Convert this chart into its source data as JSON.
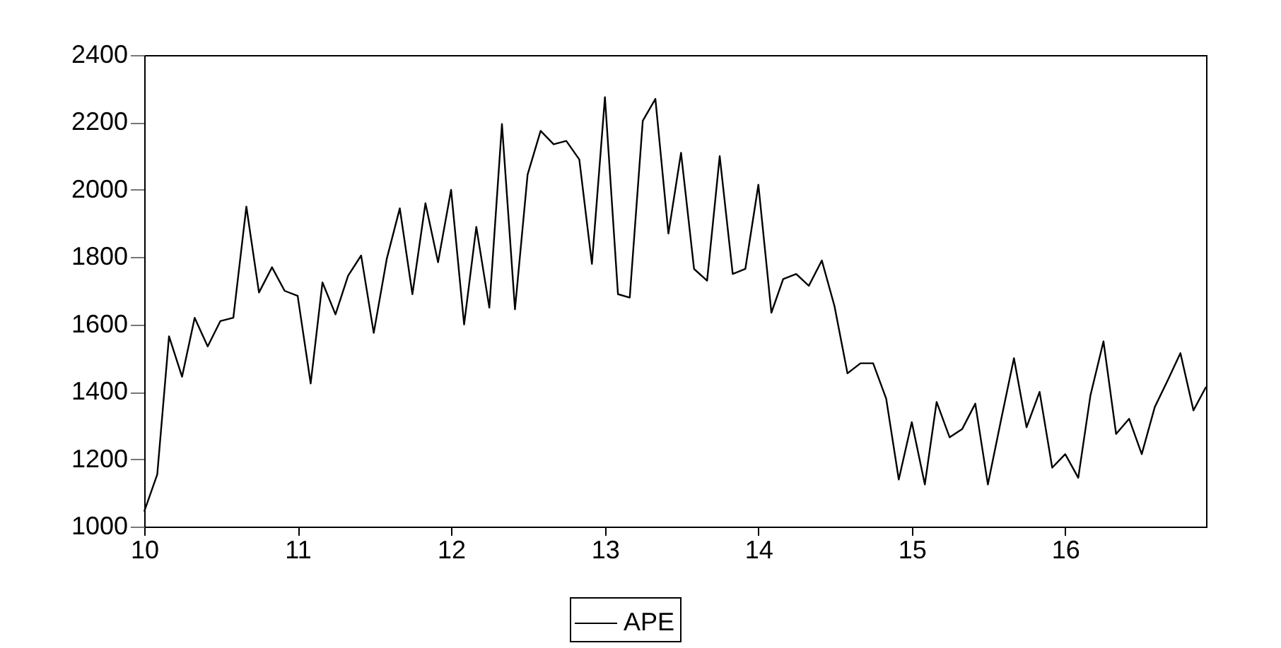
{
  "chart_data": {
    "type": "line",
    "x": [
      "2010-01",
      "2010-02",
      "2010-03",
      "2010-04",
      "2010-05",
      "2010-06",
      "2010-07",
      "2010-08",
      "2010-09",
      "2010-10",
      "2010-11",
      "2010-12",
      "2011-01",
      "2011-02",
      "2011-03",
      "2011-04",
      "2011-05",
      "2011-06",
      "2011-07",
      "2011-08",
      "2011-09",
      "2011-10",
      "2011-11",
      "2011-12",
      "2012-01",
      "2012-02",
      "2012-03",
      "2012-04",
      "2012-05",
      "2012-06",
      "2012-07",
      "2012-08",
      "2012-09",
      "2012-10",
      "2012-11",
      "2012-12",
      "2013-01",
      "2013-02",
      "2013-03",
      "2013-04",
      "2013-05",
      "2013-06",
      "2013-07",
      "2013-08",
      "2013-09",
      "2013-10",
      "2013-11",
      "2013-12",
      "2014-01",
      "2014-02",
      "2014-03",
      "2014-04",
      "2014-05",
      "2014-06",
      "2014-07",
      "2014-08",
      "2014-09",
      "2014-10",
      "2014-11",
      "2014-12",
      "2015-01",
      "2015-02",
      "2015-03",
      "2015-04",
      "2015-05",
      "2015-06",
      "2015-07",
      "2015-08",
      "2015-09",
      "2015-10",
      "2015-11",
      "2015-12",
      "2016-01",
      "2016-02",
      "2016-03",
      "2016-04",
      "2016-05",
      "2016-06",
      "2016-07",
      "2016-08",
      "2016-09",
      "2016-10",
      "2016-11",
      "2016-12"
    ],
    "series": [
      {
        "name": "APE",
        "color": "#000000",
        "values": [
          1045,
          1155,
          1565,
          1445,
          1620,
          1535,
          1610,
          1620,
          1950,
          1695,
          1770,
          1700,
          1685,
          1425,
          1725,
          1630,
          1745,
          1805,
          1575,
          1795,
          1945,
          1690,
          1960,
          1785,
          2000,
          1600,
          1890,
          1650,
          2195,
          1645,
          2045,
          2175,
          2135,
          2145,
          2090,
          1780,
          2275,
          1690,
          1680,
          2205,
          2270,
          1870,
          2110,
          1765,
          1730,
          2100,
          1750,
          1765,
          2015,
          1635,
          1735,
          1750,
          1715,
          1790,
          1655,
          1455,
          1485,
          1485,
          1380,
          1140,
          1310,
          1125,
          1370,
          1265,
          1290,
          1365,
          1125,
          1315,
          1500,
          1295,
          1400,
          1175,
          1215,
          1145,
          1390,
          1550,
          1275,
          1320,
          1215,
          1355,
          1435,
          1515,
          1345,
          1415
        ]
      }
    ],
    "xlim": [
      "2010-01",
      "2016-12"
    ],
    "xticks": [
      {
        "value": "2010-01",
        "label": "10"
      },
      {
        "value": "2011-01",
        "label": "11"
      },
      {
        "value": "2012-01",
        "label": "12"
      },
      {
        "value": "2013-01",
        "label": "13"
      },
      {
        "value": "2014-01",
        "label": "14"
      },
      {
        "value": "2015-01",
        "label": "15"
      },
      {
        "value": "2016-01",
        "label": "16"
      }
    ],
    "ylim": [
      1000,
      2400
    ],
    "yticks": [
      1000,
      1200,
      1400,
      1600,
      1800,
      2000,
      2200,
      2400
    ],
    "legend": "bottom"
  }
}
